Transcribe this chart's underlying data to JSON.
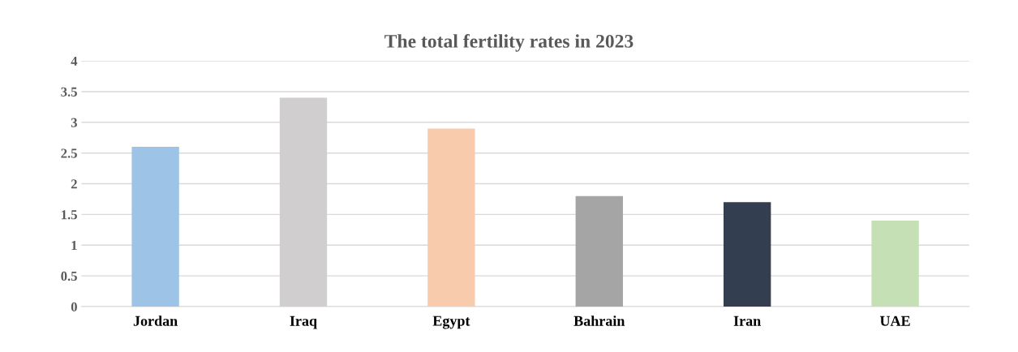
{
  "chart_data": {
    "type": "bar",
    "title": "The total fertility rates in 2023",
    "categories": [
      "Jordan",
      "Iraq",
      "Egypt",
      "Bahrain",
      "Iran",
      "UAE"
    ],
    "values": [
      2.6,
      3.4,
      2.9,
      1.8,
      1.7,
      1.4
    ],
    "colors": [
      "#9dc3e6",
      "#d0cece",
      "#f8cbad",
      "#a5a5a5",
      "#333f50",
      "#c5e0b4"
    ],
    "ylim": [
      0,
      4
    ],
    "yticks": [
      0,
      0.5,
      1,
      1.5,
      2,
      2.5,
      3,
      3.5,
      4
    ],
    "grid": "y",
    "legend": false
  }
}
